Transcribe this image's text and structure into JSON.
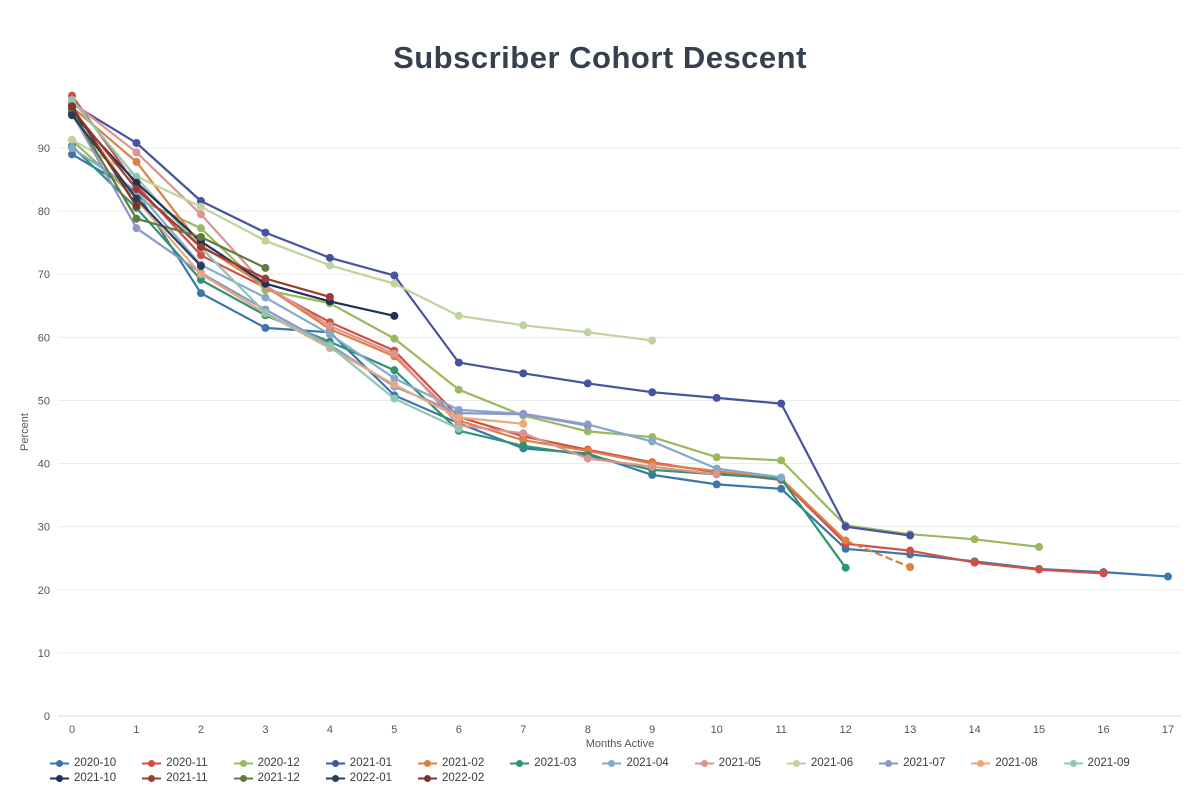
{
  "chart_data": {
    "type": "line",
    "title": "Subscriber Cohort Descent",
    "xlabel": "Months Active",
    "ylabel": "Percent",
    "x_ticks": [
      0,
      1,
      2,
      3,
      4,
      5,
      6,
      7,
      8,
      9,
      10,
      11,
      12,
      13,
      14,
      15,
      16,
      17
    ],
    "y_ticks": [
      0,
      10,
      20,
      30,
      40,
      50,
      60,
      70,
      80,
      90
    ],
    "xlim": [
      0,
      17
    ],
    "ylim": [
      0,
      100
    ],
    "grid": "horizontal-only",
    "legend_position": "bottom",
    "marker": "circle",
    "series": [
      {
        "name": "2020-10",
        "color": "#3d76a8",
        "values": [
          89.0,
          83.0,
          67.0,
          61.5,
          60.8,
          50.8,
          46.4,
          42.4,
          41.6,
          38.2,
          36.7,
          36.0,
          26.5,
          25.6,
          24.5,
          23.3,
          22.8,
          22.1
        ]
      },
      {
        "name": "2020-11",
        "color": "#d05048",
        "values": [
          98.3,
          84.1,
          73.0,
          67.9,
          62.4,
          57.9,
          47.4,
          44.3,
          42.2,
          40.2,
          38.6,
          37.4,
          27.3,
          26.2,
          24.3,
          23.2,
          22.6
        ]
      },
      {
        "name": "2020-12",
        "color": "#9cb85f",
        "values": [
          91.2,
          82.0,
          77.3,
          67.5,
          65.4,
          59.8,
          51.7,
          47.6,
          45.1,
          44.2,
          41.0,
          40.5,
          30.2,
          28.8,
          28.0,
          26.8
        ]
      },
      {
        "name": "2021-01",
        "color": "#4553a0",
        "values": [
          97.0,
          90.8,
          81.6,
          76.6,
          72.6,
          69.8,
          56.0,
          54.3,
          52.7,
          51.3,
          50.4,
          49.5,
          30.0,
          28.6
        ]
      },
      {
        "name": "2021-02",
        "color": "#df7f42",
        "dash_last_segment": true,
        "values": [
          96.5,
          87.8,
          74.6,
          68.1,
          61.3,
          57.0,
          46.8,
          43.7,
          42.0,
          40.0,
          38.8,
          37.6,
          27.8,
          23.6
        ]
      },
      {
        "name": "2021-03",
        "color": "#2f9474",
        "values": [
          90.3,
          80.5,
          69.1,
          63.5,
          59.3,
          54.8,
          45.2,
          42.8,
          41.3,
          39.0,
          38.3,
          37.6,
          23.5
        ]
      },
      {
        "name": "2021-04",
        "color": "#85a8cf",
        "values": [
          90.0,
          83.2,
          71.5,
          66.3,
          60.5,
          53.5,
          48.5,
          47.9,
          46.2,
          43.5,
          39.2,
          37.8
        ]
      },
      {
        "name": "2021-05",
        "color": "#dc9490",
        "values": [
          97.3,
          89.3,
          79.5,
          68.2,
          61.8,
          57.4,
          46.1,
          44.8,
          40.8,
          39.5,
          38.3
        ]
      },
      {
        "name": "2021-06",
        "color": "#c0d39c",
        "values": [
          91.3,
          85.5,
          80.7,
          75.3,
          71.4,
          68.5,
          63.4,
          61.9,
          60.8,
          59.5
        ]
      },
      {
        "name": "2021-07",
        "color": "#8e97c7",
        "values": [
          95.5,
          77.3,
          70.2,
          64.4,
          58.8,
          52.2,
          48.0,
          47.8,
          46.0
        ]
      },
      {
        "name": "2021-08",
        "color": "#eaa87e",
        "values": [
          96.3,
          81.8,
          70.0,
          63.8,
          58.3,
          52.5,
          47.3,
          46.3
        ]
      },
      {
        "name": "2021-09",
        "color": "#93c6b1",
        "values": [
          97.6,
          85.3,
          74.2,
          63.9,
          58.6,
          50.3,
          45.5
        ]
      },
      {
        "name": "2021-10",
        "color": "#1d3356",
        "values": [
          95.5,
          84.5,
          75.2,
          68.5,
          65.7,
          63.4
        ]
      },
      {
        "name": "2021-11",
        "color": "#9d3c33",
        "values": [
          96.2,
          83.5,
          74.3,
          69.3,
          66.4
        ]
      },
      {
        "name": "2021-12",
        "color": "#5f7b40",
        "values": [
          95.8,
          78.8,
          75.9,
          71.0
        ]
      },
      {
        "name": "2022-01",
        "color": "#283d5c",
        "values": [
          95.2,
          82.0,
          71.3
        ]
      },
      {
        "name": "2022-02",
        "color": "#7e342b",
        "values": [
          96.6,
          80.8
        ]
      }
    ]
  },
  "colors": {
    "title": "#36404e",
    "axis_text": "#555555",
    "grid": "#ebebeb",
    "background": "#ffffff"
  }
}
